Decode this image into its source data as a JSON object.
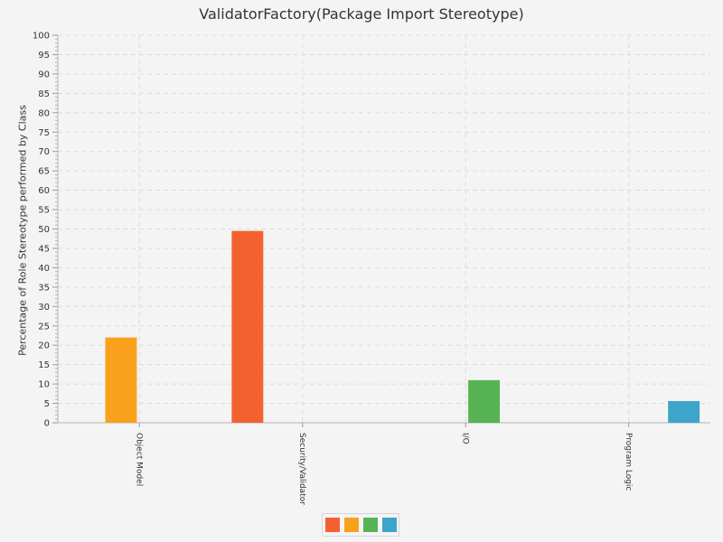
{
  "chart_data": {
    "type": "bar",
    "title": "ValidatorFactory(Package Import Stereotype)",
    "xlabel": "",
    "ylabel": "Percentage of Role Stereotype performed by Class",
    "ylim": [
      0,
      100
    ],
    "y_major_step": 5,
    "y_minor_step": 1,
    "grid": true,
    "legend_position": "bottom",
    "categories": [
      "Object Model",
      "Security/Validator",
      "I/O",
      "Program Logic"
    ],
    "series": [
      {
        "color": "#f36130",
        "values": [
          0,
          49.5,
          0,
          0
        ]
      },
      {
        "color": "#f9a11d",
        "values": [
          22,
          0,
          0,
          0
        ]
      },
      {
        "color": "#56b455",
        "values": [
          0,
          0,
          11,
          0
        ]
      },
      {
        "color": "#3fa4c9",
        "values": [
          0,
          0,
          0,
          5.6
        ]
      }
    ]
  }
}
